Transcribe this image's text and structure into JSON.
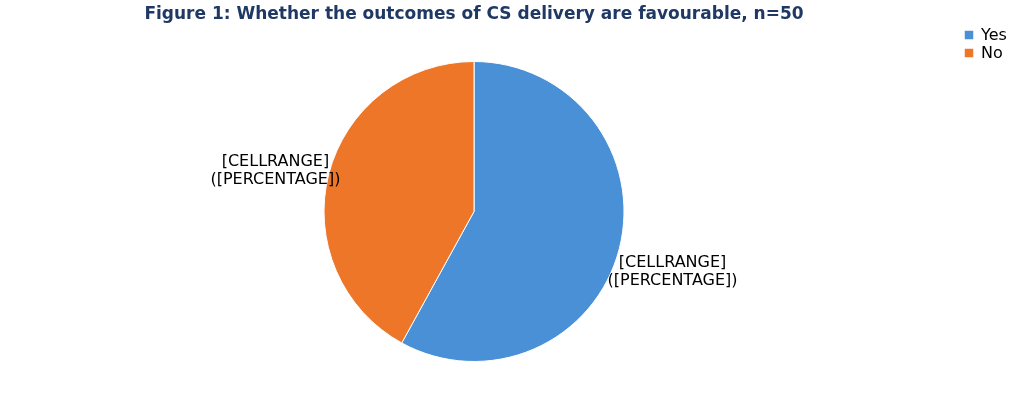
{
  "chart_data": {
    "type": "pie",
    "title": "Figure 1: Whether the outcomes of CS delivery are favourable, n=50",
    "categories": [
      "Yes",
      "No"
    ],
    "values": [
      58,
      42
    ],
    "colors": [
      "#4a90d6",
      "#ed7628"
    ],
    "value_labels": [
      "[CELLRANGE] ([PERCENTAGE])",
      "[CELLRANGE] ([PERCENTAGE])"
    ],
    "legend": "right"
  }
}
